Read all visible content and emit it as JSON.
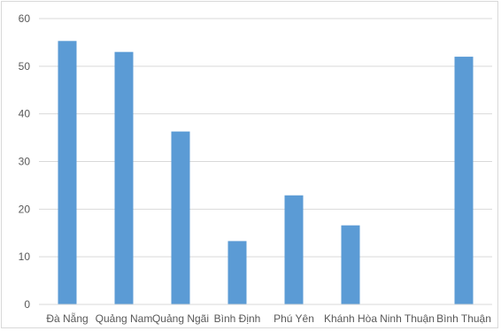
{
  "chart_data": {
    "type": "bar",
    "title": "",
    "xlabel": "",
    "ylabel": "",
    "categories": [
      "Đà Nẵng",
      "Quảng Nam",
      "Quảng Ngãi",
      "Bình Định",
      "Phú Yên",
      "Khánh Hòa",
      "Ninh Thuận",
      "Bình Thuận"
    ],
    "values": [
      55.3,
      53,
      36.3,
      13.3,
      22.9,
      16.6,
      0,
      52
    ],
    "ylim": [
      0,
      60
    ],
    "yticks": [
      "0",
      "10",
      "20",
      "30",
      "40",
      "50",
      "60"
    ],
    "grid": true,
    "legend": "none",
    "bar_color": "#5B9BD5"
  }
}
